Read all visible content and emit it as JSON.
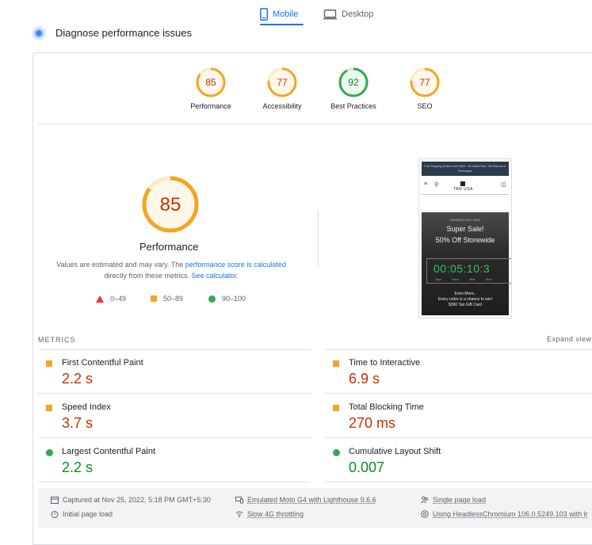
{
  "tabs": [
    {
      "label": "Mobile",
      "active": true,
      "icon": "phone-icon"
    },
    {
      "label": "Desktop",
      "active": false,
      "icon": "desktop-icon"
    }
  ],
  "diagnose": {
    "title": "Diagnose performance issues"
  },
  "categories": [
    {
      "label": "Performance",
      "score": "85",
      "status": "average"
    },
    {
      "label": "Accessibility",
      "score": "77",
      "status": "average"
    },
    {
      "label": "Best Practices",
      "score": "92",
      "status": "pass"
    },
    {
      "label": "SEO",
      "score": "77",
      "status": "average"
    }
  ],
  "main_gauge": {
    "score": "85",
    "title": "Performance"
  },
  "note": {
    "text1": "Values are estimated and may vary. The ",
    "link1": "performance score is calculated",
    "text2": "directly from these metrics. ",
    "link2": "See calculator."
  },
  "legend": [
    {
      "range": "0–49",
      "shape": "triangle",
      "color": "#e53935"
    },
    {
      "range": "50–89",
      "shape": "square",
      "color": "#f4a522"
    },
    {
      "range": "90–100",
      "shape": "circle",
      "color": "#34a853"
    }
  ],
  "preview": {
    "banner": "Free Shipping Orders Over $100 - All Sales Final - No Returns or Exchanges",
    "logo": "TAN USA",
    "small": "MEMBERS ONLY SALE",
    "headline1": "Super Sale!",
    "headline2": "50% Off Storewide",
    "timer": "00:05:10:3",
    "units": "Days Hours Mins Secs",
    "footer1": "Even More..",
    "footer2": "Every order is a chance to win!",
    "footer3": "$300 Tan Gift Card"
  },
  "metrics": {
    "heading": "METRICS",
    "expand": "Expand view",
    "items": [
      {
        "name": "First Contentful Paint",
        "value": "2.2 s",
        "status": "average"
      },
      {
        "name": "Time to Interactive",
        "value": "6.9 s",
        "status": "average"
      },
      {
        "name": "Speed Index",
        "value": "3.7 s",
        "status": "average"
      },
      {
        "name": "Total Blocking Time",
        "value": "270 ms",
        "status": "average"
      },
      {
        "name": "Largest Contentful Paint",
        "value": "2.2 s",
        "status": "pass"
      },
      {
        "name": "Cumulative Layout Shift",
        "value": "0.007",
        "status": "pass"
      }
    ]
  },
  "footer": {
    "captured": "Captured at Nov 25, 2022, 5:18 PM GMT+5:30",
    "initial": "Initial page load",
    "device": "Emulated Moto G4 with Lighthouse 9.6.6",
    "throttling": "Slow 4G throttling",
    "single": "Single page load",
    "browser": "Using HeadlessChromium 106.0.5249.103 with lr"
  },
  "colors": {
    "accent": "#1a73e8",
    "average": "#f4a522",
    "pass": "#34a853",
    "fail": "#e53935"
  }
}
